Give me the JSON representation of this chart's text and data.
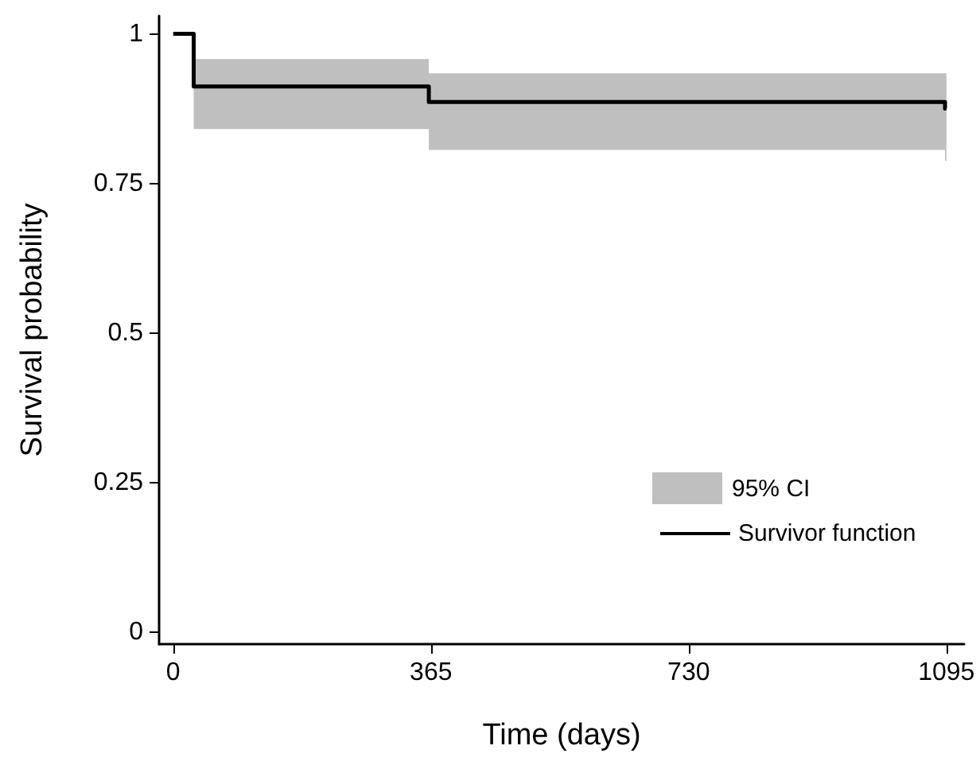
{
  "chart_data": {
    "type": "step",
    "xlabel": "Time (days)",
    "ylabel": "Survival probability",
    "xlim": [
      -20,
      1120
    ],
    "xticks": [
      0,
      365,
      730,
      1095
    ],
    "ylim": [
      -0.02,
      1.03
    ],
    "yticks": [
      0,
      0.25,
      0.5,
      0.75,
      1
    ],
    "grid": false,
    "legend": "bottom right",
    "marker": "none",
    "line_style": "solid",
    "annotations": [
      "95% CI"
    ],
    "series": [
      {
        "name": "Survivor function",
        "color": "#000000",
        "x": [
          0,
          29,
          362,
          1093,
          1095
        ],
        "values": [
          1,
          0.912,
          0.886,
          0.875,
          0.875
        ],
        "lower": [
          null,
          0.841,
          0.806,
          0.788,
          0.788
        ],
        "upper": [
          null,
          0.958,
          0.934,
          0.934,
          0.934
        ]
      }
    ]
  }
}
